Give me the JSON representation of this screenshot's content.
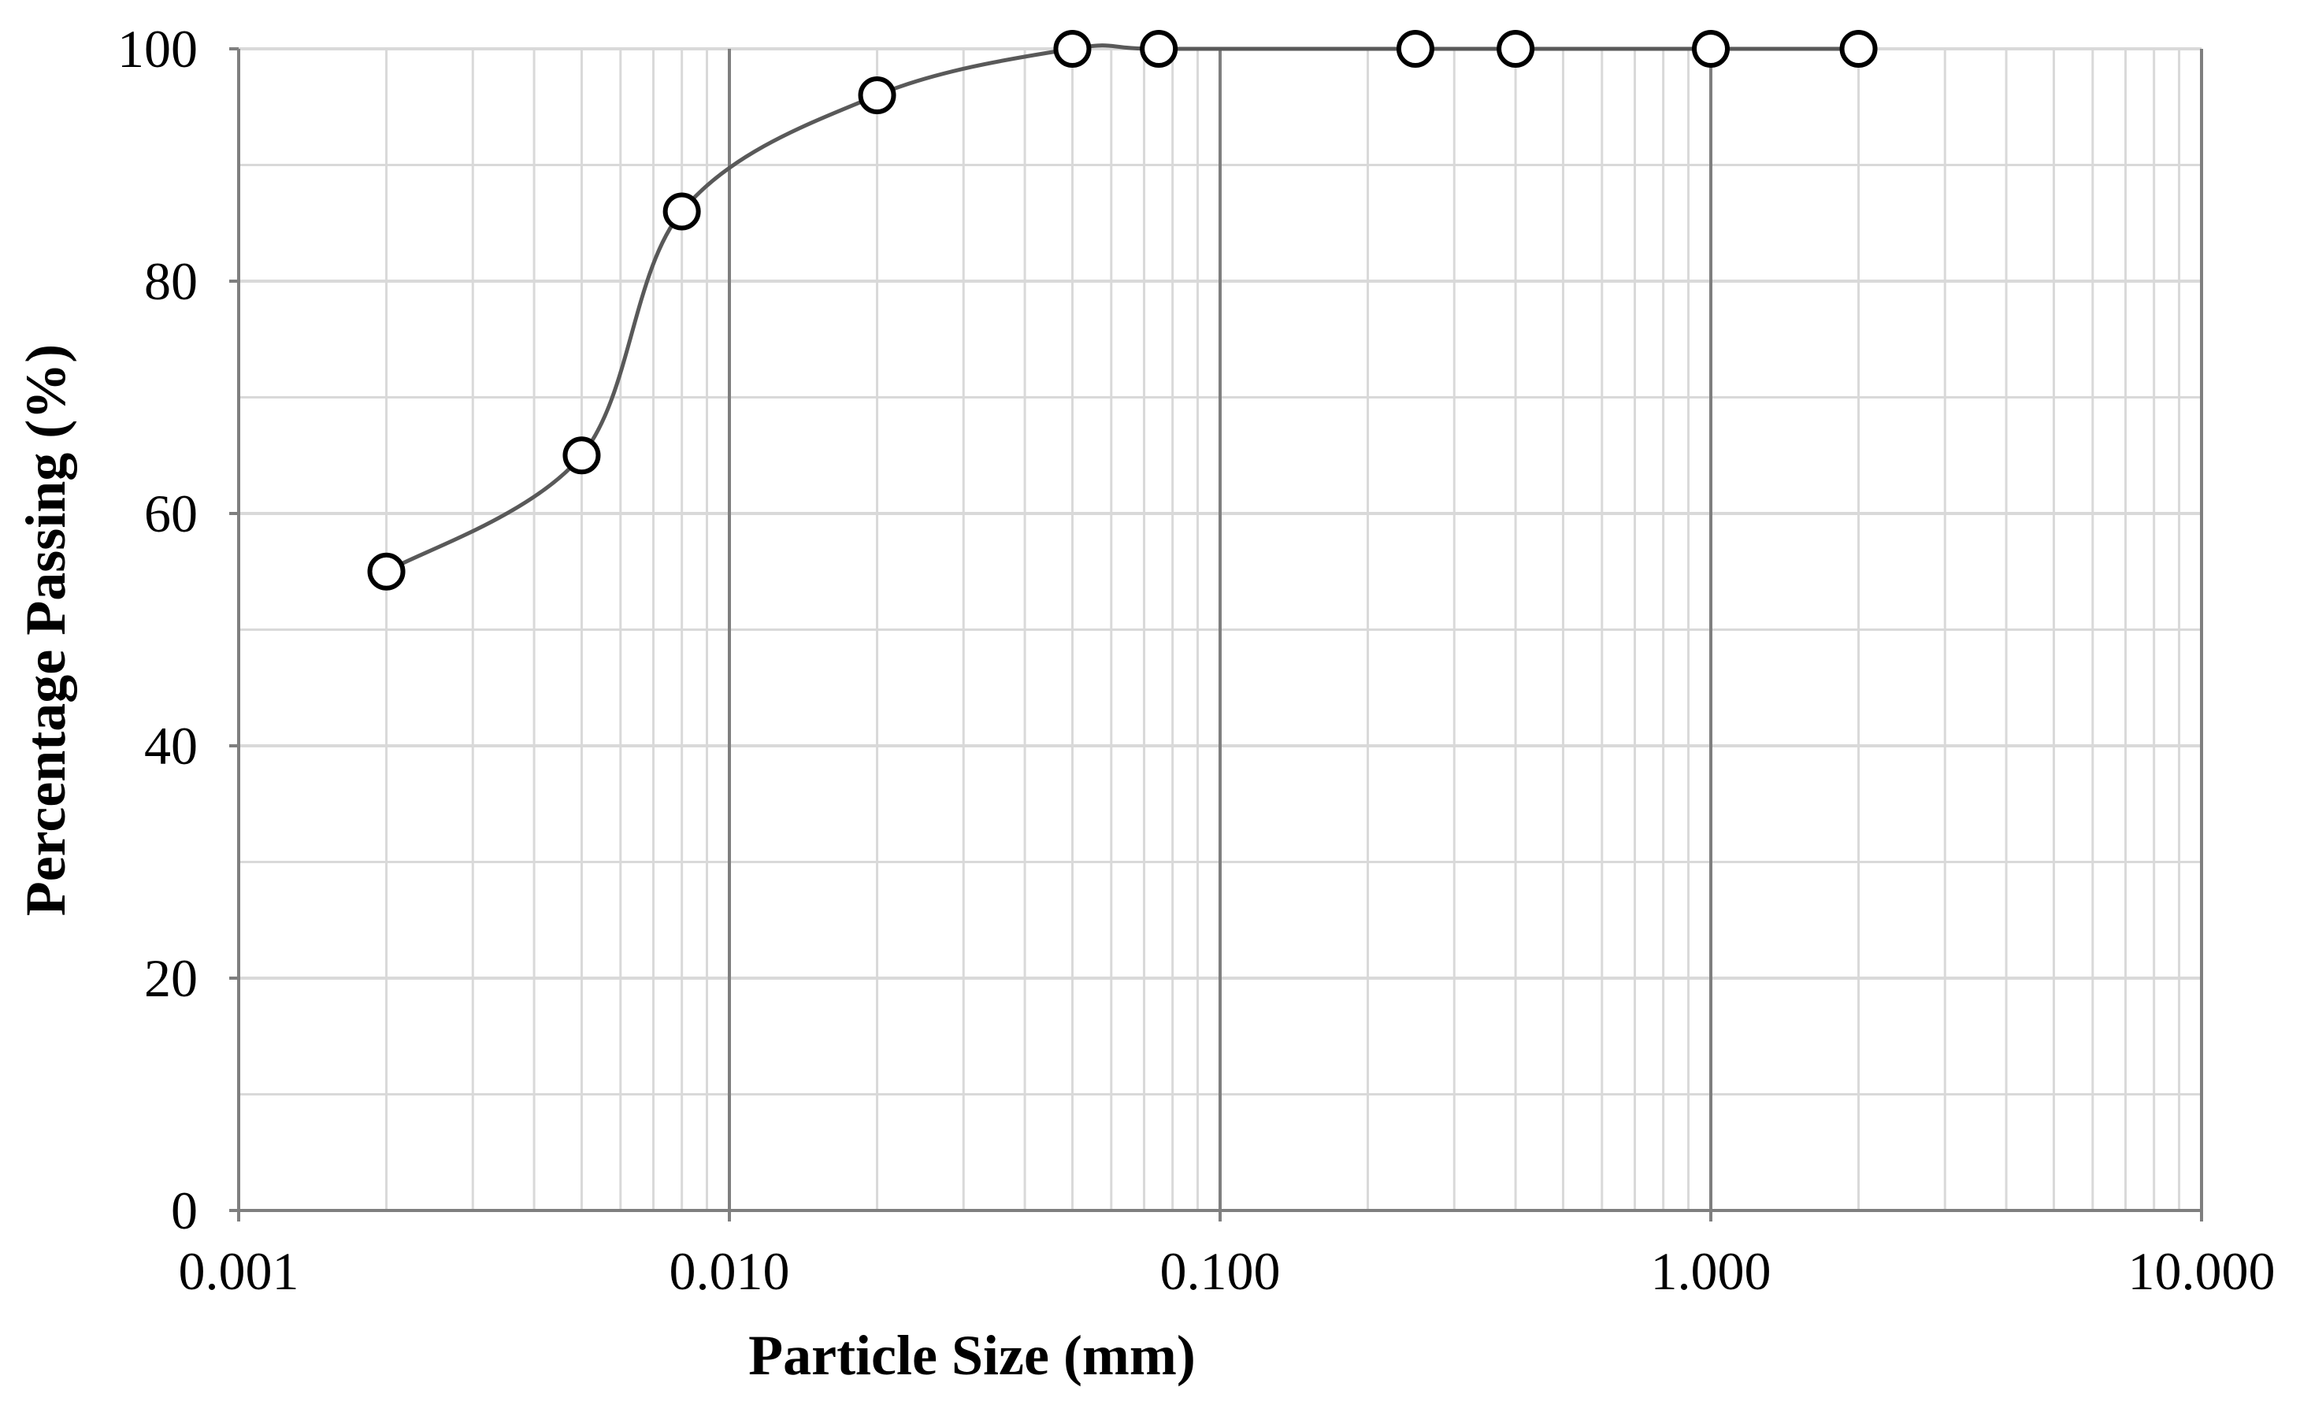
{
  "chart_data": {
    "type": "scatter",
    "xscale": "log",
    "title": "",
    "xlabel": "Particle Size (mm)",
    "ylabel": "Percentage Passing (%)",
    "xlim": [
      0.001,
      10.0
    ],
    "ylim": [
      0,
      100
    ],
    "x_ticks": [
      0.001,
      0.01,
      0.1,
      1.0,
      10.0
    ],
    "x_tick_labels": [
      "0.001",
      "0.010",
      "0.100",
      "1.000",
      "10.000"
    ],
    "y_ticks": [
      0,
      20,
      40,
      60,
      80,
      100
    ],
    "y_tick_labels": [
      "0",
      "20",
      "40",
      "60",
      "80",
      "100"
    ],
    "y_minor_step": 10,
    "grid": true,
    "legend": "none",
    "series": [
      {
        "name": "Percentage Passing",
        "marker": "open-circle",
        "line": "smooth",
        "line_color": "#595959",
        "x": [
          0.002,
          0.005,
          0.008,
          0.02,
          0.05,
          0.075,
          0.25,
          0.4,
          1.0,
          2.0
        ],
        "y": [
          55,
          65,
          86,
          96,
          100,
          100,
          100,
          100,
          100,
          100
        ]
      }
    ],
    "colors": {
      "grid_minor": "#d9d9d9",
      "grid_major": "#7f7f7f",
      "axis": "#7f7f7f",
      "marker_stroke": "#000000",
      "marker_fill": "#ffffff"
    }
  }
}
